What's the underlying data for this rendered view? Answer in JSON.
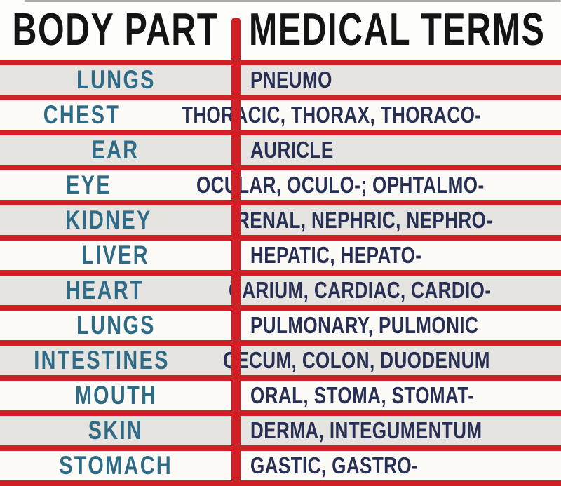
{
  "colors": {
    "line_red": "#d02026",
    "body_part_text": "#2e6b87",
    "terms_text": "#272f54",
    "header_text": "#141414",
    "row_alt_bg": "#e5e4e1",
    "row_bg": "#fcfbf8",
    "top_edge_line": "#adadad"
  },
  "table": {
    "headers": [
      "BODY PART",
      "MEDICAL TERMS"
    ],
    "rows": [
      {
        "body_part": "LUNGS",
        "terms": "PNEUMO"
      },
      {
        "body_part": "CHEST",
        "terms": "THORACIC, THORAX, THORACO-"
      },
      {
        "body_part": "EAR",
        "terms": "AURICLE"
      },
      {
        "body_part": "EYE",
        "terms": "OCULAR, OCULO-; OPHTALMO-"
      },
      {
        "body_part": "KIDNEY",
        "terms": "RENAL, NEPHRIC, NEPHRO-"
      },
      {
        "body_part": "LIVER",
        "terms": "HEPATIC, HEPATO-"
      },
      {
        "body_part": "HEART",
        "terms": "CARIUM, CARDIAC, CARDIO-"
      },
      {
        "body_part": "LUNGS",
        "terms": "PULMONARY, PULMONIC"
      },
      {
        "body_part": "INTESTINES",
        "terms": "CECUM, COLON, DUODENUM"
      },
      {
        "body_part": "MOUTH",
        "terms": "ORAL, STOMA, STOMAT-"
      },
      {
        "body_part": "SKIN",
        "terms": "DERMA, INTEGUMENTUM"
      },
      {
        "body_part": "STOMACH",
        "terms": "GASTIC, GASTRO-"
      }
    ]
  }
}
